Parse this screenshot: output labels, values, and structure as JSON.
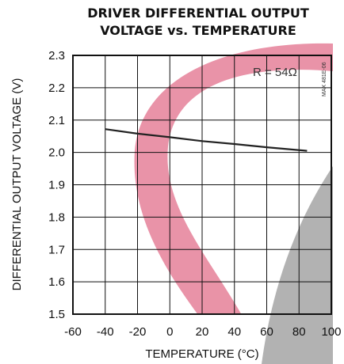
{
  "chart_data": {
    "type": "line",
    "title_lines": [
      "DRIVER DIFFERENTIAL OUTPUT",
      "VOLTAGE vs. TEMPERATURE"
    ],
    "xlabel": "TEMPERATURE (°C)",
    "ylabel": "DIFFERENTIAL OUTPUT VOLTAGE (V)",
    "xlim": [
      -60,
      100
    ],
    "ylim": [
      1.5,
      2.3
    ],
    "xticks": [
      -60,
      -40,
      -20,
      0,
      20,
      40,
      60,
      80,
      100
    ],
    "yticks": [
      "1.5",
      "1.6",
      "1.7",
      "1.8",
      "1.9",
      "2.0",
      "2.1",
      "2.2",
      "2.3"
    ],
    "grid": true,
    "series": [
      {
        "name": "R = 54Ω",
        "color": "#222222",
        "x": [
          -40,
          -20,
          0,
          20,
          40,
          60,
          85
        ],
        "y": [
          2.072,
          2.058,
          2.047,
          2.035,
          2.026,
          2.016,
          2.005
        ]
      }
    ],
    "annotation": "R = 54Ω",
    "part_label": "MAX 481E-06"
  },
  "watermark": {
    "pink": "#e06a86",
    "gray": "#9a9a9a"
  }
}
